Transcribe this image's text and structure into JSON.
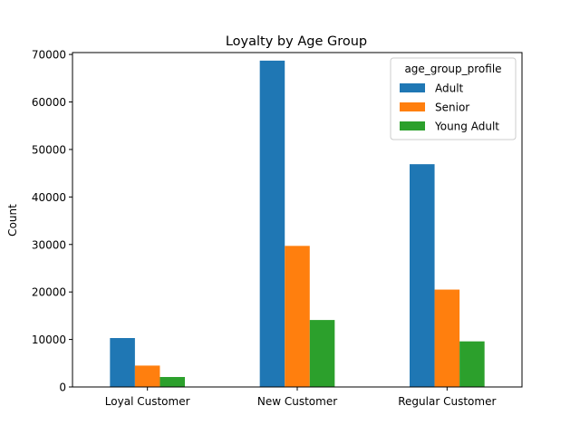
{
  "chart_data": {
    "type": "bar",
    "title": "Loyalty by Age Group",
    "xlabel": "",
    "ylabel": "Count",
    "categories": [
      "Loyal Customer",
      "New Customer",
      "Regular Customer"
    ],
    "series": [
      {
        "name": "Adult",
        "color": "#1f77b4",
        "values": [
          10300,
          68700,
          46900
        ]
      },
      {
        "name": "Senior",
        "color": "#ff7f0e",
        "values": [
          4500,
          29700,
          20500
        ]
      },
      {
        "name": "Young Adult",
        "color": "#2ca02c",
        "values": [
          2100,
          14100,
          9600
        ]
      }
    ],
    "ylim": [
      0,
      70400
    ],
    "yticks": [
      0,
      10000,
      20000,
      30000,
      40000,
      50000,
      60000,
      70000
    ],
    "legend": {
      "title": "age_group_profile",
      "placement": "top-right"
    },
    "grid": false
  }
}
